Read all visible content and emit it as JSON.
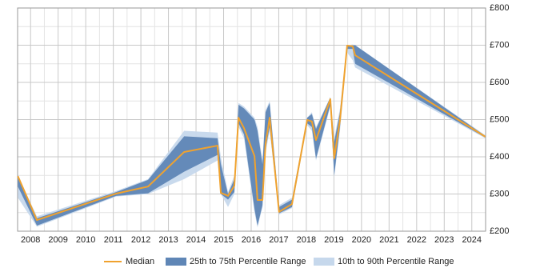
{
  "chart_data": {
    "type": "line-band",
    "x": [
      2007.54,
      2008.23,
      2011.1,
      2012.26,
      2013.57,
      2014.78,
      2014.9,
      2015.16,
      2015.39,
      2015.54,
      2015.74,
      2016.12,
      2016.23,
      2016.41,
      2016.52,
      2016.67,
      2017.01,
      2017.48,
      2018.03,
      2018.2,
      2018.35,
      2018.87,
      2019.01,
      2019.22,
      2019.48,
      2019.68,
      2019.77,
      2024.49
    ],
    "series": [
      {
        "name": "10th to 90th Percentile Range",
        "color": "#c6d8ec",
        "low": [
          290,
          212,
          293,
          300,
          340,
          390,
          300,
          265,
          300,
          480,
          450,
          250,
          210,
          265,
          410,
          470,
          245,
          262,
          485,
          470,
          390,
          535,
          345,
          470,
          680,
          660,
          640,
          450
        ],
        "high": [
          350,
          240,
          308,
          340,
          470,
          465,
          400,
          305,
          350,
          545,
          535,
          505,
          480,
          390,
          525,
          550,
          270,
          290,
          505,
          520,
          480,
          560,
          450,
          530,
          700,
          702,
          700,
          458
        ]
      },
      {
        "name": "25th to 75th Percentile Range",
        "color": "#5f86b6",
        "low": [
          320,
          215,
          295,
          302,
          360,
          405,
          300,
          285,
          305,
          490,
          460,
          260,
          215,
          270,
          420,
          480,
          248,
          265,
          490,
          480,
          395,
          540,
          350,
          480,
          690,
          690,
          650,
          452
        ],
        "high": [
          350,
          235,
          305,
          338,
          455,
          450,
          380,
          300,
          340,
          540,
          530,
          500,
          470,
          380,
          520,
          545,
          265,
          285,
          505,
          515,
          475,
          560,
          440,
          520,
          700,
          700,
          700,
          456
        ]
      },
      {
        "name": "Median",
        "color": "#f0a22e",
        "values": [
          348,
          230,
          301,
          320,
          413,
          430,
          303,
          295,
          322,
          505,
          477,
          402,
          284,
          284,
          434,
          505,
          252,
          273,
          499,
          495,
          445,
          555,
          396,
          499,
          699,
          697,
          673,
          454
        ]
      }
    ],
    "xlim": [
      2007.53,
      2024.5
    ],
    "xticks": [
      2008,
      2009,
      2010,
      2011,
      2012,
      2013,
      2014,
      2015,
      2016,
      2017,
      2018,
      2019,
      2020,
      2021,
      2022,
      2023,
      2024
    ],
    "ylim": [
      200,
      800
    ],
    "yticks": [
      {
        "value": 200,
        "label": "£200"
      },
      {
        "value": 300,
        "label": "£300"
      },
      {
        "value": 400,
        "label": "£400"
      },
      {
        "value": 500,
        "label": "£500"
      },
      {
        "value": 600,
        "label": "£600"
      },
      {
        "value": 700,
        "label": "£700"
      },
      {
        "value": 800,
        "label": "£800"
      }
    ],
    "grid": true,
    "minor_grid": true,
    "legend": "bottom"
  }
}
